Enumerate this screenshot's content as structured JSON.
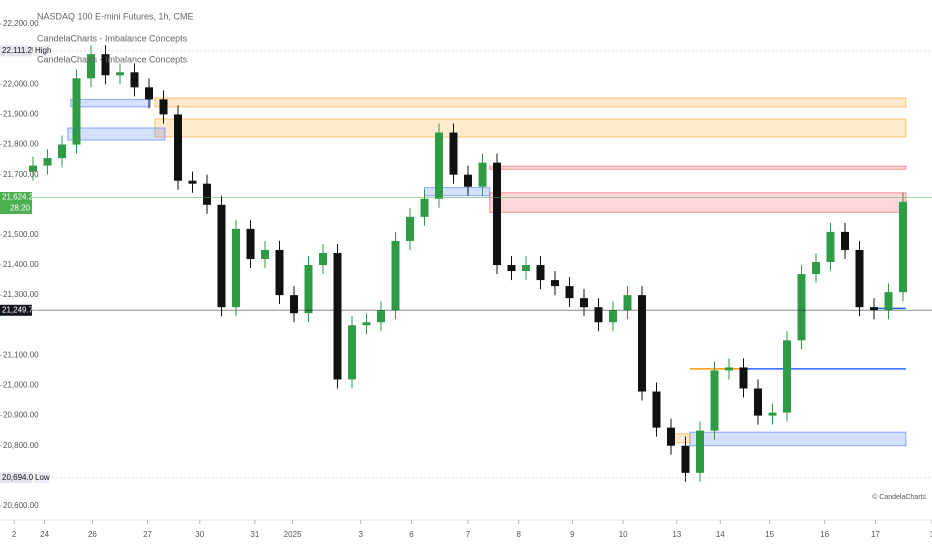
{
  "chart_data": {
    "type": "candlestick",
    "title": "NASDAQ 100 E-mini Futures, 1h, CME",
    "indicators": [
      "CandelaCharts - Imbalance Concepts",
      "CandelaCharts - Imbalance Concepts"
    ],
    "watermark": "© CandelaCharts",
    "up_color": "#2e9b45",
    "down_color": "#111111",
    "open": [
      21710,
      21730,
      21755,
      21800,
      22020,
      22100,
      22030,
      22040,
      21990,
      21950,
      21900,
      21680,
      21670,
      21600,
      21260,
      21520,
      21420,
      21450,
      21300,
      21240,
      21400,
      21440,
      21020,
      21200,
      21210,
      21250,
      21480,
      21560,
      21620,
      21840,
      21700,
      21660,
      21740,
      21400,
      21380,
      21400,
      21350,
      21330,
      21290,
      21260,
      21210,
      21250,
      21300,
      20980,
      20860,
      20800,
      20710,
      20850,
      21050,
      21060,
      20990,
      20900,
      20910,
      21150,
      21370,
      21410,
      21510,
      21450,
      21260,
      21250,
      21310
    ],
    "high": [
      21760,
      21785,
      21830,
      22050,
      22130,
      22130,
      22070,
      22070,
      22020,
      21980,
      21930,
      21710,
      21700,
      21630,
      21550,
      21550,
      21480,
      21480,
      21330,
      21430,
      21470,
      21470,
      21230,
      21240,
      21280,
      21510,
      21590,
      21650,
      21870,
      21870,
      21730,
      21770,
      21770,
      21430,
      21430,
      21430,
      21380,
      21360,
      21320,
      21290,
      21280,
      21330,
      21330,
      21010,
      20890,
      20830,
      20880,
      21080,
      21090,
      21090,
      21020,
      20940,
      21180,
      21400,
      21440,
      21540,
      21540,
      21480,
      21290,
      21340,
      21640
    ],
    "low": [
      21680,
      21700,
      21725,
      21770,
      21990,
      22000,
      22000,
      21960,
      21920,
      21870,
      21650,
      21640,
      21570,
      21230,
      21230,
      21390,
      21390,
      21270,
      21210,
      21210,
      21370,
      20990,
      20990,
      21170,
      21180,
      21220,
      21450,
      21530,
      21590,
      21670,
      21630,
      21630,
      21370,
      21350,
      21350,
      21320,
      21300,
      21260,
      21230,
      21180,
      21180,
      21220,
      20950,
      20830,
      20770,
      20680,
      20680,
      20820,
      21020,
      20960,
      20870,
      20870,
      20880,
      21120,
      21340,
      21380,
      21420,
      21230,
      21220,
      21220,
      21280
    ],
    "close": [
      21730,
      21755,
      21800,
      22020,
      22100,
      22030,
      22040,
      21990,
      21950,
      21900,
      21680,
      21670,
      21600,
      21260,
      21520,
      21420,
      21450,
      21300,
      21240,
      21400,
      21440,
      21020,
      21200,
      21210,
      21250,
      21480,
      21560,
      21620,
      21840,
      21700,
      21660,
      21740,
      21400,
      21380,
      21400,
      21350,
      21330,
      21290,
      21260,
      21210,
      21250,
      21300,
      20980,
      20860,
      20800,
      20710,
      20850,
      21050,
      21060,
      20990,
      20900,
      20910,
      21150,
      21370,
      21410,
      21510,
      21450,
      21260,
      21250,
      21310,
      21610
    ],
    "xlim": [
      -2,
      62
    ],
    "xticks": [
      {
        "value": -1.3,
        "label": "2"
      },
      {
        "value": 0.8,
        "label": "24"
      },
      {
        "value": 4.1,
        "label": "26"
      },
      {
        "value": 7.9,
        "label": "27"
      },
      {
        "value": 11.5,
        "label": "30"
      },
      {
        "value": 15.3,
        "label": "31"
      },
      {
        "value": 17.9,
        "label": "2025"
      },
      {
        "value": 22.6,
        "label": "3"
      },
      {
        "value": 26.1,
        "label": "6"
      },
      {
        "value": 30,
        "label": "7"
      },
      {
        "value": 33.5,
        "label": "8"
      },
      {
        "value": 37.2,
        "label": "9"
      },
      {
        "value": 40.7,
        "label": "10"
      },
      {
        "value": 44.4,
        "label": "13"
      },
      {
        "value": 47.4,
        "label": "14"
      },
      {
        "value": 50.8,
        "label": "15"
      },
      {
        "value": 54.6,
        "label": "16"
      },
      {
        "value": 58.1,
        "label": "17"
      },
      {
        "value": 62,
        "label": "1"
      }
    ],
    "ylim": [
      20560,
      22280
    ],
    "yticks": [
      {
        "value": 22200,
        "label": "22,200.00"
      },
      {
        "value": 22000,
        "label": "22,000.00"
      },
      {
        "value": 21900,
        "label": "21,900.00"
      },
      {
        "value": 21800,
        "label": "21,800.00"
      },
      {
        "value": 21700,
        "label": "21,700.00"
      },
      {
        "value": 21500,
        "label": "21,500.00"
      },
      {
        "value": 21400,
        "label": "21,400.00"
      },
      {
        "value": 21300,
        "label": "21,300.00"
      },
      {
        "value": 21100,
        "label": "21,100.00"
      },
      {
        "value": 21000,
        "label": "21,000.00"
      },
      {
        "value": 20900,
        "label": "20,900.00"
      },
      {
        "value": 20800,
        "label": "20,800.00"
      },
      {
        "value": 20600,
        "label": "20,600.00"
      }
    ],
    "zones": [
      {
        "from": 8.4,
        "to": 60.2,
        "low": 21925,
        "high": 21955,
        "color": "#ff9800"
      },
      {
        "from": 8.4,
        "to": 60.2,
        "low": 21825,
        "high": 21885,
        "color": "#ff9800"
      },
      {
        "from": 2.4,
        "to": 9.1,
        "low": 21815,
        "high": 21855,
        "color": "#2962ff"
      },
      {
        "from": 2.6,
        "to": 8.1,
        "low": 21925,
        "high": 21950,
        "color": "#2962ff"
      },
      {
        "from": 31.5,
        "to": 60.2,
        "low": 21575,
        "high": 21640,
        "color": "#f23645"
      },
      {
        "from": 31.5,
        "to": 60.2,
        "low": 21718,
        "high": 21728,
        "color": "#f23645"
      },
      {
        "from": 27,
        "to": 31.5,
        "low": 21630,
        "high": 21657,
        "color": "#2962ff"
      },
      {
        "from": 45.3,
        "to": 48.8,
        "low": 21055,
        "high": 21055,
        "color": "#ff9800"
      },
      {
        "from": 48.8,
        "to": 60.2,
        "low": 21055,
        "high": 21055,
        "color": "#2962ff"
      },
      {
        "from": 57.9,
        "to": 60.2,
        "low": 21256,
        "high": 21256,
        "color": "#2962ff"
      },
      {
        "from": 45.3,
        "to": 60.2,
        "low": 20800,
        "high": 20845,
        "color": "#2962ff"
      },
      {
        "from": 44.1,
        "to": 45.3,
        "low": 20810,
        "high": 20840,
        "color": "#ff9800"
      }
    ],
    "markers": [
      {
        "value": 22111.25,
        "label": "22,111.25",
        "tag": "High",
        "color": "#e3e6ee"
      },
      {
        "value": 20694,
        "label": "20,694.00",
        "tag": "Low",
        "color": "#e3e6ee"
      },
      {
        "value": 21249.75,
        "label": "21,249.75",
        "color": "#131722"
      },
      {
        "value": 21624.25,
        "label": "21,624.25",
        "tag": "28:20",
        "color": "#4caf50"
      }
    ]
  }
}
